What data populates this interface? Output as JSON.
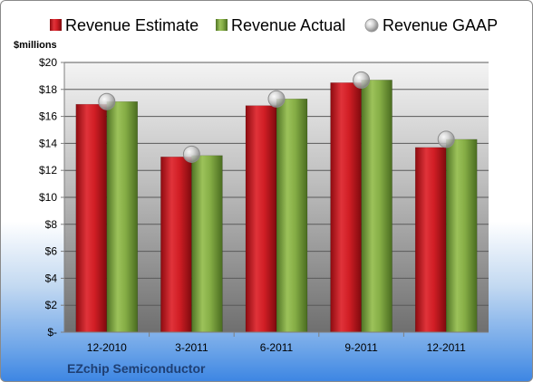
{
  "chart_data": {
    "type": "bar",
    "categories": [
      "12-2010",
      "3-2011",
      "6-2011",
      "9-2011",
      "12-2011"
    ],
    "series": [
      {
        "name": "Revenue Estimate",
        "values": [
          16.9,
          13.0,
          16.8,
          18.5,
          13.7
        ],
        "color": "#c8161c",
        "kind": "bar"
      },
      {
        "name": "Revenue Actual",
        "values": [
          17.1,
          13.1,
          17.3,
          18.7,
          14.3
        ],
        "color": "#77a03c",
        "kind": "bar"
      },
      {
        "name": "Revenue GAAP",
        "values": [
          17.1,
          13.2,
          17.3,
          18.7,
          14.3
        ],
        "color": "#c9c9c9",
        "kind": "marker"
      }
    ],
    "ylabel": "$millions",
    "ylim": [
      0,
      20
    ],
    "yticks": [
      0,
      2,
      4,
      6,
      8,
      10,
      12,
      14,
      16,
      18,
      20
    ],
    "ytick_labels": [
      "$-",
      "$2",
      "$4",
      "$6",
      "$8",
      "$10",
      "$12",
      "$14",
      "$16",
      "$18",
      "$20"
    ],
    "grid": true,
    "legend_position": "top",
    "footer": "EZchip Semiconductor"
  }
}
